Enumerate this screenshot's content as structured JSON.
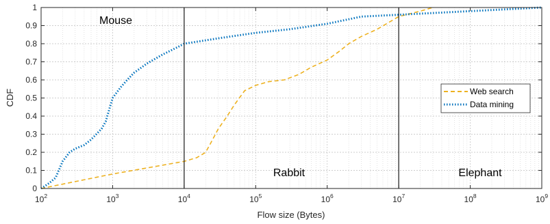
{
  "chart_data": {
    "type": "line",
    "xlabel": "Flow size (Bytes)",
    "ylabel": "CDF",
    "xscale": "log",
    "xlim": [
      100,
      1000000000
    ],
    "ylim": [
      0,
      1
    ],
    "x_ticks": [
      {
        "base": "10",
        "exp": "2",
        "value": 100
      },
      {
        "base": "10",
        "exp": "3",
        "value": 1000
      },
      {
        "base": "10",
        "exp": "4",
        "value": 10000
      },
      {
        "base": "10",
        "exp": "5",
        "value": 100000
      },
      {
        "base": "10",
        "exp": "6",
        "value": 1000000
      },
      {
        "base": "10",
        "exp": "7",
        "value": 10000000
      },
      {
        "base": "10",
        "exp": "8",
        "value": 100000000
      },
      {
        "base": "10",
        "exp": "9",
        "value": 1000000000
      }
    ],
    "y_ticks": [
      "0",
      "0.1",
      "0.2",
      "0.3",
      "0.4",
      "0.5",
      "0.6",
      "0.7",
      "0.8",
      "0.9",
      "1"
    ],
    "grid": true,
    "legend_position": "right",
    "series": [
      {
        "name": "Web search",
        "color": "#EDB120",
        "style": "dashed",
        "points": [
          [
            100,
            0
          ],
          [
            1000,
            0.08
          ],
          [
            10000,
            0.15
          ],
          [
            15000,
            0.17
          ],
          [
            20000,
            0.2
          ],
          [
            25000,
            0.27
          ],
          [
            30000,
            0.33
          ],
          [
            40000,
            0.4
          ],
          [
            50000,
            0.46
          ],
          [
            70000,
            0.54
          ],
          [
            100000,
            0.57
          ],
          [
            150000,
            0.59
          ],
          [
            250000,
            0.6
          ],
          [
            400000,
            0.63
          ],
          [
            600000,
            0.67
          ],
          [
            1000000,
            0.71
          ],
          [
            1500000,
            0.76
          ],
          [
            2000000,
            0.8
          ],
          [
            3000000,
            0.84
          ],
          [
            5000000,
            0.88
          ],
          [
            10000000,
            0.95
          ],
          [
            20000000,
            0.98
          ],
          [
            30000000,
            1
          ]
        ]
      },
      {
        "name": "Data mining",
        "color": "#0072BD",
        "style": "dotted",
        "points": [
          [
            100,
            0
          ],
          [
            130,
            0.03
          ],
          [
            160,
            0.06
          ],
          [
            200,
            0.15
          ],
          [
            250,
            0.2
          ],
          [
            300,
            0.22
          ],
          [
            400,
            0.24
          ],
          [
            500,
            0.27
          ],
          [
            700,
            0.33
          ],
          [
            800,
            0.37
          ],
          [
            1000,
            0.5
          ],
          [
            1300,
            0.56
          ],
          [
            1600,
            0.6
          ],
          [
            2000,
            0.64
          ],
          [
            3000,
            0.69
          ],
          [
            5000,
            0.74
          ],
          [
            8000,
            0.78
          ],
          [
            10000,
            0.8
          ],
          [
            30000,
            0.83
          ],
          [
            100000,
            0.86
          ],
          [
            300000,
            0.88
          ],
          [
            1000000,
            0.91
          ],
          [
            2000000,
            0.935
          ],
          [
            3000000,
            0.95
          ],
          [
            10000000,
            0.96
          ],
          [
            100000000,
            0.98
          ],
          [
            1000000000,
            1
          ]
        ]
      }
    ],
    "thresholds": [
      10000,
      10000000
    ],
    "regions": [
      "Mouse",
      "Rabbit",
      "Elephant"
    ]
  }
}
